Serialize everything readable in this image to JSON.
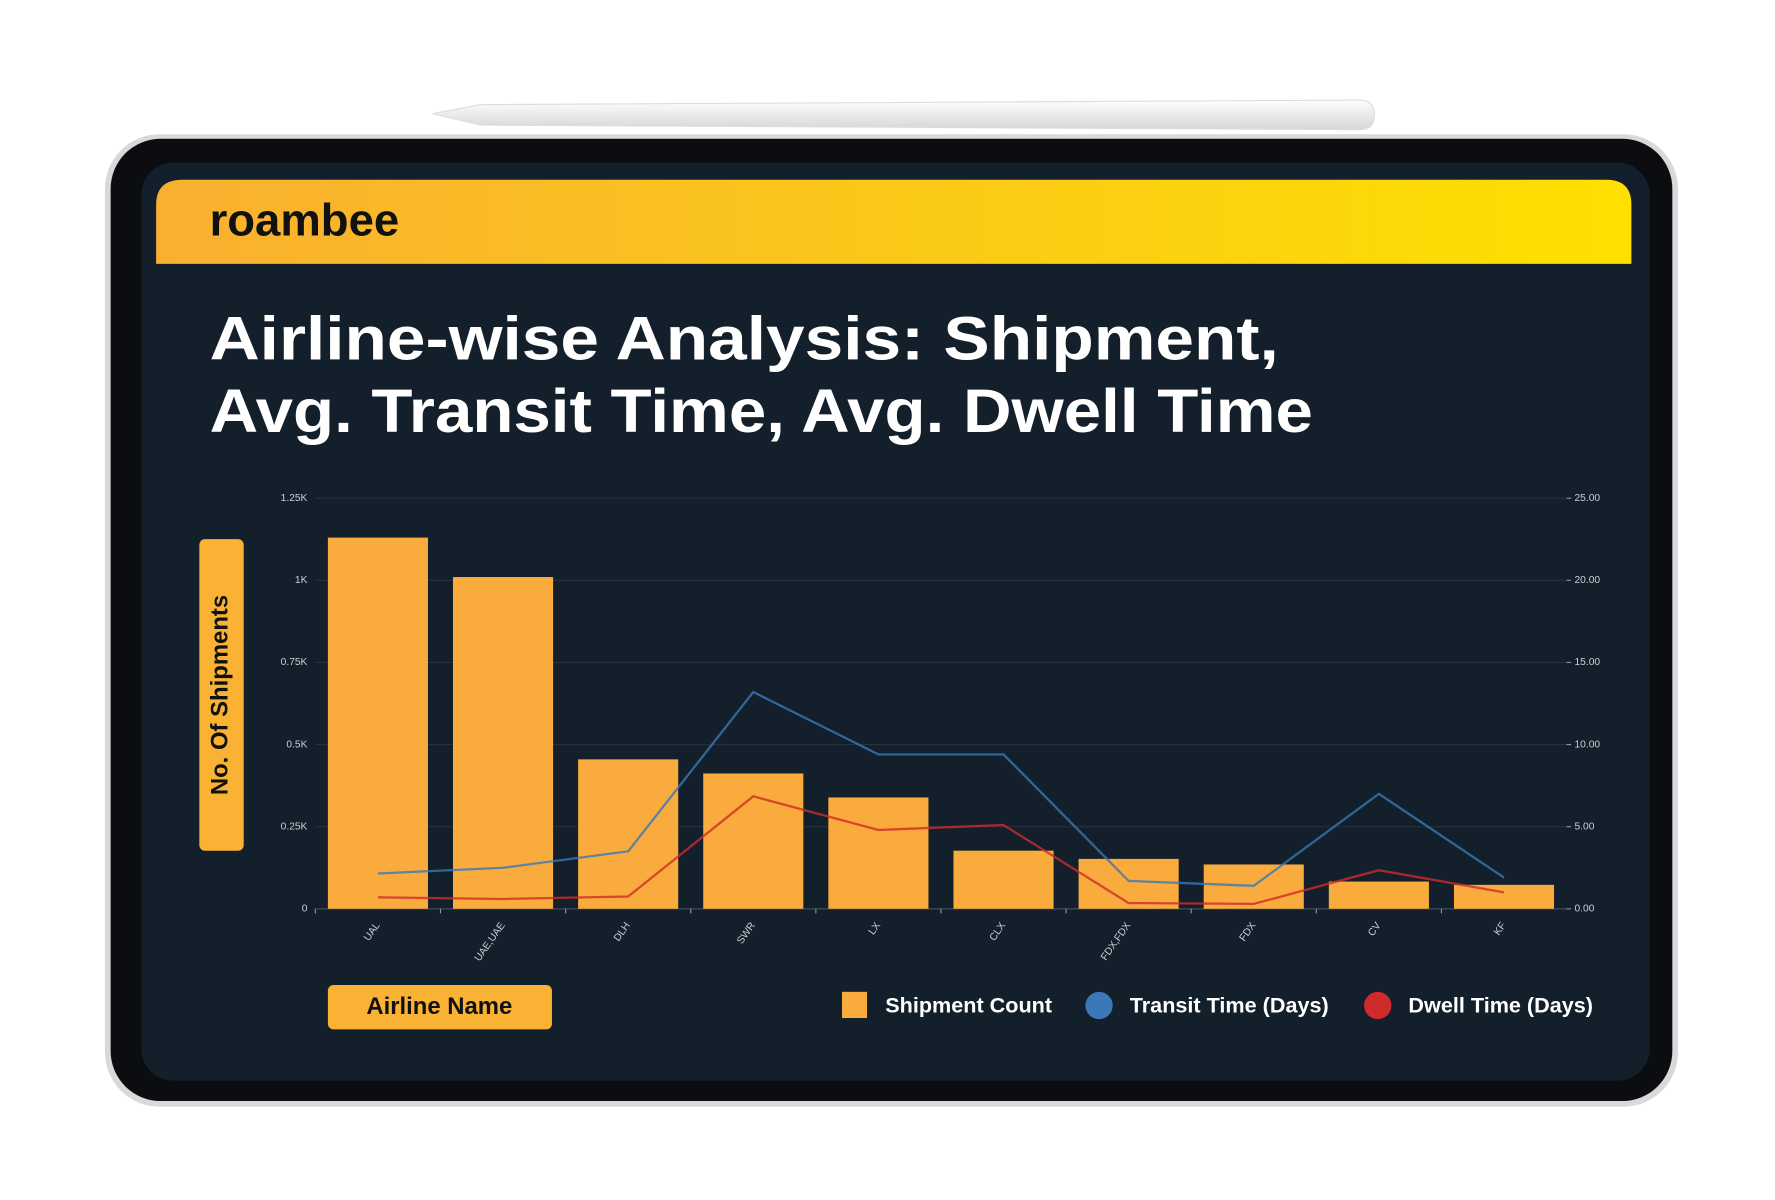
{
  "brand": "roambee",
  "chart_data": {
    "type": "bar",
    "title": [
      "Airline-wise Analysis:  Shipment,",
      "Avg. Transit Time, Avg. Dwell Time"
    ],
    "ylabel": "No. Of Shipments",
    "xlabel": "Airline Name",
    "categories": [
      "UAL",
      "UAE,UAE",
      "DLH",
      "SWR",
      "LX",
      "CLX",
      "FDX,FDX",
      "FDX",
      "CV",
      "KF"
    ],
    "series": [
      {
        "name": "Shipment Count",
        "type": "bar",
        "color": "#f9ac3d",
        "values": [
          1130,
          1010,
          455,
          412,
          339,
          177,
          152,
          135,
          83,
          73
        ]
      },
      {
        "name": "Transit Time (Days)",
        "type": "line",
        "axis": "y2",
        "color": "#3a78b8",
        "values": [
          2.15,
          2.5,
          3.5,
          13.2,
          9.4,
          9.4,
          1.7,
          1.4,
          7.0,
          1.9
        ]
      },
      {
        "name": "Dwell Time (Days)",
        "type": "line",
        "axis": "y2",
        "color": "#d02a2a",
        "values": [
          0.7,
          0.6,
          0.75,
          6.85,
          4.8,
          5.1,
          0.35,
          0.3,
          2.35,
          1.0
        ]
      }
    ],
    "ylim": [
      0,
      1250
    ],
    "yticks": [
      0,
      {
        "value": 250,
        "label": "0.25K"
      },
      {
        "value": 500,
        "label": "0.5K"
      },
      {
        "value": 750,
        "label": "0.75K"
      },
      {
        "value": 1000,
        "label": "1K"
      },
      {
        "value": 1250,
        "label": "1.25K"
      }
    ],
    "y2lim": [
      0,
      25
    ],
    "y2ticks": [
      {
        "value": 0,
        "label": "0.00"
      },
      {
        "value": 5,
        "label": "5.00"
      },
      {
        "value": 10,
        "label": "10.00"
      },
      {
        "value": 15,
        "label": "15.00"
      },
      {
        "value": 20,
        "label": "20.00"
      },
      {
        "value": 25,
        "label": "25.00"
      }
    ],
    "grid": true
  }
}
